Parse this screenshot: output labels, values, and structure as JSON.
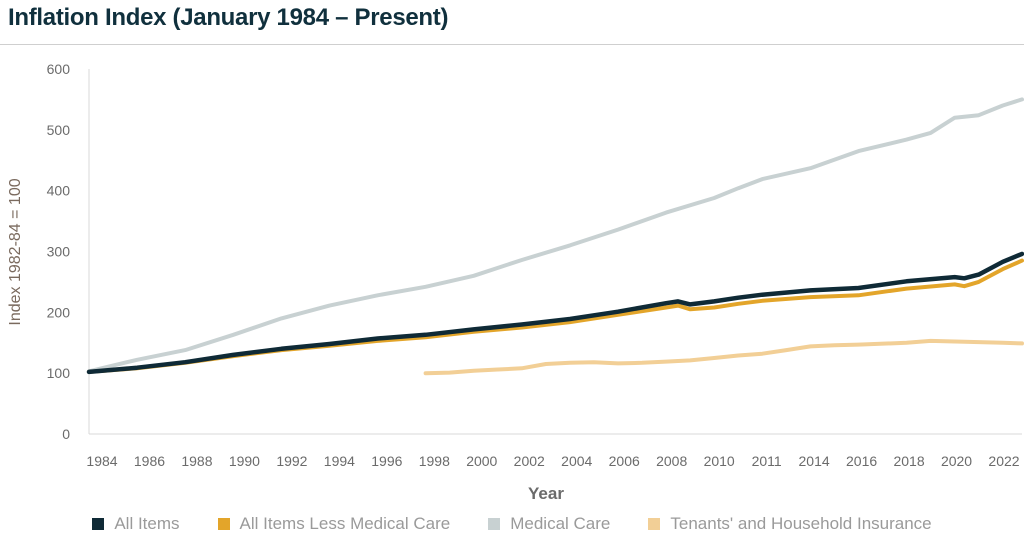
{
  "title": "Inflation Index (January 1984 – Present)",
  "chart_data": {
    "type": "line",
    "title": "Inflation Index (January 1984 – Present)",
    "xlabel": "Year",
    "ylabel": "Index 1982-84 = 100",
    "ylim": [
      0,
      600
    ],
    "yticks": [
      0,
      100,
      200,
      300,
      400,
      500,
      600
    ],
    "xlim": [
      1984.0,
      2022.8
    ],
    "x_tick_labels": [
      "1984",
      "1986",
      "1988",
      "1990",
      "1992",
      "1994",
      "1996",
      "1998",
      "2000",
      "2002",
      "2004",
      "2006",
      "2008",
      "2010",
      "2011",
      "2014",
      "2016",
      "2018",
      "2020",
      "2022"
    ],
    "grid": false,
    "legend_position": "bottom",
    "series": [
      {
        "name": "All Items",
        "color": "#0f2a36",
        "points": [
          [
            1984,
            102
          ],
          [
            1986,
            109
          ],
          [
            1988,
            118
          ],
          [
            1990,
            130
          ],
          [
            1992,
            140
          ],
          [
            1994,
            148
          ],
          [
            1996,
            157
          ],
          [
            1998,
            163
          ],
          [
            2000,
            172
          ],
          [
            2002,
            180
          ],
          [
            2004,
            189
          ],
          [
            2006,
            201
          ],
          [
            2008,
            215
          ],
          [
            2008.5,
            218
          ],
          [
            2009,
            213
          ],
          [
            2010,
            218
          ],
          [
            2011,
            224
          ],
          [
            2012,
            229
          ],
          [
            2014,
            236
          ],
          [
            2016,
            240
          ],
          [
            2018,
            251
          ],
          [
            2020,
            258
          ],
          [
            2020.4,
            256
          ],
          [
            2021,
            262
          ],
          [
            2022,
            283
          ],
          [
            2022.8,
            296
          ]
        ]
      },
      {
        "name": "All Items Less Medical Care",
        "color": "#e3a52a",
        "points": [
          [
            1984,
            102
          ],
          [
            1986,
            108
          ],
          [
            1988,
            117
          ],
          [
            1990,
            128
          ],
          [
            1992,
            138
          ],
          [
            1994,
            145
          ],
          [
            1996,
            153
          ],
          [
            1998,
            159
          ],
          [
            2000,
            168
          ],
          [
            2002,
            175
          ],
          [
            2004,
            184
          ],
          [
            2006,
            196
          ],
          [
            2008,
            208
          ],
          [
            2008.5,
            211
          ],
          [
            2009,
            205
          ],
          [
            2010,
            208
          ],
          [
            2011,
            214
          ],
          [
            2012,
            219
          ],
          [
            2014,
            225
          ],
          [
            2016,
            228
          ],
          [
            2018,
            239
          ],
          [
            2020,
            246
          ],
          [
            2020.4,
            243
          ],
          [
            2021,
            250
          ],
          [
            2022,
            271
          ],
          [
            2022.8,
            285
          ]
        ]
      },
      {
        "name": "Medical Care",
        "color": "#c8d1d2",
        "points": [
          [
            1984,
            103
          ],
          [
            1986,
            122
          ],
          [
            1988,
            138
          ],
          [
            1990,
            163
          ],
          [
            1992,
            190
          ],
          [
            1994,
            211
          ],
          [
            1996,
            228
          ],
          [
            1998,
            242
          ],
          [
            2000,
            260
          ],
          [
            2002,
            286
          ],
          [
            2004,
            310
          ],
          [
            2006,
            336
          ],
          [
            2008,
            364
          ],
          [
            2010,
            388
          ],
          [
            2011,
            404
          ],
          [
            2012,
            419
          ],
          [
            2014,
            437
          ],
          [
            2016,
            465
          ],
          [
            2018,
            484
          ],
          [
            2019,
            495
          ],
          [
            2020,
            520
          ],
          [
            2021,
            524
          ],
          [
            2022,
            540
          ],
          [
            2022.8,
            550
          ]
        ]
      },
      {
        "name": "Tenants' and Household Insurance",
        "color": "#f2cf96",
        "points": [
          [
            1998,
            100
          ],
          [
            1999,
            101
          ],
          [
            2000,
            104
          ],
          [
            2001,
            106
          ],
          [
            2002,
            108
          ],
          [
            2003,
            115
          ],
          [
            2004,
            117
          ],
          [
            2005,
            118
          ],
          [
            2006,
            116
          ],
          [
            2007,
            117
          ],
          [
            2008,
            119
          ],
          [
            2009,
            121
          ],
          [
            2010,
            125
          ],
          [
            2011,
            129
          ],
          [
            2012,
            132
          ],
          [
            2013,
            138
          ],
          [
            2014,
            144
          ],
          [
            2015,
            146
          ],
          [
            2016,
            147
          ],
          [
            2018,
            150
          ],
          [
            2019,
            153
          ],
          [
            2020,
            152
          ],
          [
            2021,
            151
          ],
          [
            2022,
            150
          ],
          [
            2022.8,
            149
          ]
        ]
      }
    ]
  }
}
